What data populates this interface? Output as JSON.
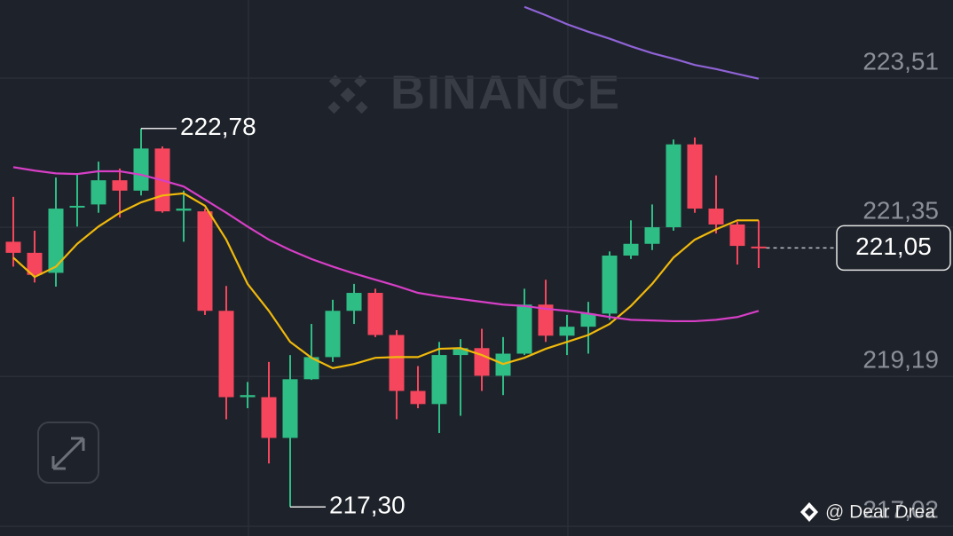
{
  "chart_data": {
    "type": "candlestick",
    "watermark": "BINANCE",
    "credit": "@ Dear Drea",
    "ylim": [
      216.88,
      224.64
    ],
    "yticks": [
      {
        "value": 223.51,
        "label": "223,51"
      },
      {
        "value": 221.35,
        "label": "221,35"
      },
      {
        "value": 219.19,
        "label": "219,19"
      },
      {
        "value": 217.02,
        "label": "217,02"
      }
    ],
    "grid": true,
    "up_color": "#2ebd85",
    "down_color": "#f6465d",
    "candles": {
      "open": [
        221.14,
        220.98,
        220.69,
        221.65,
        221.68,
        222.03,
        221.88,
        222.49,
        221.59,
        221.58,
        220.14,
        218.89,
        218.89,
        218.3,
        219.15,
        219.47,
        220.14,
        220.4,
        219.79,
        218.98,
        218.79,
        219.5,
        219.6,
        219.2,
        219.52,
        220.23,
        219.78,
        219.91,
        220.1,
        220.94,
        221.11,
        221.35,
        222.55,
        221.62,
        221.39,
        221.07
      ],
      "high": [
        221.79,
        221.3,
        222.07,
        222.13,
        222.3,
        222.2,
        222.78,
        222.52,
        221.88,
        221.62,
        220.5,
        219.11,
        219.4,
        219.5,
        219.95,
        220.3,
        220.53,
        220.46,
        219.86,
        219.34,
        219.69,
        219.73,
        219.88,
        219.76,
        220.46,
        220.59,
        220.08,
        220.27,
        221.0,
        221.45,
        221.68,
        222.62,
        222.65,
        222.1,
        221.43,
        221.45
      ],
      "low": [
        220.78,
        220.55,
        220.49,
        221.36,
        221.56,
        221.49,
        221.81,
        221.56,
        221.14,
        220.08,
        218.57,
        218.73,
        217.93,
        217.3,
        219.14,
        219.4,
        219.95,
        219.76,
        218.57,
        218.73,
        218.37,
        218.62,
        218.98,
        218.92,
        219.5,
        219.69,
        219.5,
        219.52,
        220.01,
        220.89,
        221.02,
        221.3,
        221.56,
        221.26,
        220.81,
        220.76
      ],
      "close": [
        220.98,
        220.66,
        221.62,
        221.66,
        222.03,
        221.88,
        222.49,
        221.58,
        221.62,
        220.14,
        218.89,
        218.92,
        218.3,
        219.15,
        219.47,
        220.14,
        220.4,
        219.79,
        218.98,
        218.79,
        219.5,
        219.6,
        219.2,
        219.52,
        220.23,
        219.78,
        219.91,
        220.1,
        220.94,
        221.11,
        221.35,
        222.55,
        221.62,
        221.39,
        221.08,
        221.05
      ]
    },
    "series": [
      {
        "color": "#f0b90b",
        "values": [
          220.91,
          220.63,
          220.78,
          221.11,
          221.36,
          221.56,
          221.71,
          221.81,
          221.84,
          221.66,
          221.17,
          220.53,
          220.14,
          219.69,
          219.46,
          219.31,
          219.37,
          219.46,
          219.47,
          219.47,
          219.59,
          219.6,
          219.5,
          219.37,
          219.46,
          219.59,
          219.69,
          219.79,
          219.95,
          220.21,
          220.53,
          220.91,
          221.17,
          221.32,
          221.45,
          221.45
        ]
      },
      {
        "color": "#d63fc6",
        "values": [
          222.22,
          222.17,
          222.13,
          222.12,
          222.16,
          222.16,
          222.11,
          222.03,
          221.94,
          221.75,
          221.56,
          221.36,
          221.17,
          221.02,
          220.89,
          220.78,
          220.68,
          220.59,
          220.5,
          220.4,
          220.35,
          220.31,
          220.27,
          220.23,
          220.21,
          220.17,
          220.14,
          220.1,
          220.05,
          220.01,
          220.0,
          219.99,
          219.99,
          220.01,
          220.05,
          220.14
        ]
      },
      {
        "color": "#8f63d6",
        "values": [
          null,
          null,
          null,
          null,
          null,
          null,
          null,
          null,
          null,
          null,
          null,
          null,
          null,
          null,
          null,
          null,
          null,
          null,
          null,
          null,
          null,
          null,
          null,
          null,
          224.54,
          224.42,
          224.29,
          224.18,
          224.08,
          223.97,
          223.87,
          223.79,
          223.7,
          223.64,
          223.57,
          223.5
        ]
      }
    ],
    "annotations": [
      {
        "value": 222.78,
        "label": "222,78"
      },
      {
        "value": 217.3,
        "label": "217,30"
      }
    ],
    "last_price": {
      "value": 221.05,
      "label": "221,05"
    }
  }
}
